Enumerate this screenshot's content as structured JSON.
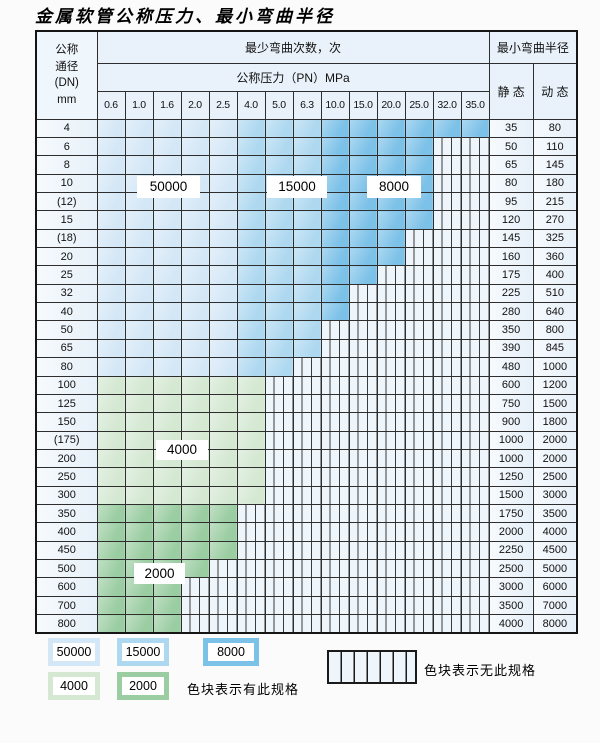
{
  "title": "金属软管公称压力、最小弯曲半径",
  "table": {
    "dn_header_lines": [
      "公称",
      "通径",
      "(DN)",
      "mm"
    ],
    "cycles_header": "最少弯曲次数，次",
    "pressure_header": "公称压力（PN）MPa",
    "radius_header": "最小弯曲半径",
    "static_label": "静 态",
    "dynamic_label": "动 态",
    "pressure_columns": [
      "0.6",
      "1.0",
      "1.6",
      "2.0",
      "2.5",
      "4.0",
      "5.0",
      "6.3",
      "10.0",
      "15.0",
      "20.0",
      "25.0",
      "32.0",
      "35.0"
    ],
    "rows": [
      {
        "dn": "4",
        "group": "blue",
        "colored_until": 13,
        "static": "35",
        "dynamic": "80"
      },
      {
        "dn": "6",
        "group": "blue",
        "colored_until": 11,
        "static": "50",
        "dynamic": "110"
      },
      {
        "dn": "8",
        "group": "blue",
        "colored_until": 11,
        "static": "65",
        "dynamic": "145"
      },
      {
        "dn": "10",
        "group": "blue",
        "colored_until": 11,
        "static": "80",
        "dynamic": "180"
      },
      {
        "dn": "(12)",
        "group": "blue",
        "colored_until": 11,
        "static": "95",
        "dynamic": "215"
      },
      {
        "dn": "15",
        "group": "blue",
        "colored_until": 11,
        "static": "120",
        "dynamic": "270"
      },
      {
        "dn": "(18)",
        "group": "blue",
        "colored_until": 10,
        "static": "145",
        "dynamic": "325"
      },
      {
        "dn": "20",
        "group": "blue",
        "colored_until": 10,
        "static": "160",
        "dynamic": "360"
      },
      {
        "dn": "25",
        "group": "blue",
        "colored_until": 9,
        "static": "175",
        "dynamic": "400"
      },
      {
        "dn": "32",
        "group": "blue",
        "colored_until": 8,
        "static": "225",
        "dynamic": "510"
      },
      {
        "dn": "40",
        "group": "blue",
        "colored_until": 8,
        "static": "280",
        "dynamic": "640"
      },
      {
        "dn": "50",
        "group": "blue",
        "colored_until": 7,
        "static": "350",
        "dynamic": "800"
      },
      {
        "dn": "65",
        "group": "blue",
        "colored_until": 7,
        "static": "390",
        "dynamic": "845"
      },
      {
        "dn": "80",
        "group": "blue",
        "colored_until": 6,
        "static": "480",
        "dynamic": "1000"
      },
      {
        "dn": "100",
        "group": "g4",
        "colored_until": 5,
        "static": "600",
        "dynamic": "1200"
      },
      {
        "dn": "125",
        "group": "g4",
        "colored_until": 5,
        "static": "750",
        "dynamic": "1500"
      },
      {
        "dn": "150",
        "group": "g4",
        "colored_until": 5,
        "static": "900",
        "dynamic": "1800"
      },
      {
        "dn": "(175)",
        "group": "g4",
        "colored_until": 5,
        "static": "1000",
        "dynamic": "2000"
      },
      {
        "dn": "200",
        "group": "g4",
        "colored_until": 5,
        "static": "1000",
        "dynamic": "2000"
      },
      {
        "dn": "250",
        "group": "g4",
        "colored_until": 5,
        "static": "1250",
        "dynamic": "2500"
      },
      {
        "dn": "300",
        "group": "g4",
        "colored_until": 5,
        "static": "1500",
        "dynamic": "3000"
      },
      {
        "dn": "350",
        "group": "g2",
        "colored_until": 4,
        "static": "1750",
        "dynamic": "3500"
      },
      {
        "dn": "400",
        "group": "g2",
        "colored_until": 4,
        "static": "2000",
        "dynamic": "4000"
      },
      {
        "dn": "450",
        "group": "g2",
        "colored_until": 4,
        "static": "2250",
        "dynamic": "4500"
      },
      {
        "dn": "500",
        "group": "g2",
        "colored_until": 3,
        "static": "2500",
        "dynamic": "5000"
      },
      {
        "dn": "600",
        "group": "g2",
        "colored_until": 2,
        "static": "3000",
        "dynamic": "6000"
      },
      {
        "dn": "700",
        "group": "g2",
        "colored_until": 2,
        "static": "3500",
        "dynamic": "7000"
      },
      {
        "dn": "800",
        "group": "g2",
        "colored_until": 2,
        "static": "4000",
        "dynamic": "8000"
      }
    ]
  },
  "zone_colors": {
    "c50000": "#d4e7f6",
    "c15000": "#aed8f0",
    "c8000": "#7cc1e8",
    "c4000": "#d4e8d2",
    "c2000": "#9bcda2",
    "stripe_bg": "#eef5fb",
    "grid": "#2e2e2e",
    "header_bg": "#e9f2fa",
    "side_bg": "#eff6fc"
  },
  "overlay_labels": [
    {
      "text": "50000"
    },
    {
      "text": "15000"
    },
    {
      "text": "8000"
    },
    {
      "text": "4000"
    },
    {
      "text": "2000"
    }
  ],
  "legend": {
    "items": [
      {
        "label": "50000"
      },
      {
        "label": "15000"
      },
      {
        "label": "8000"
      },
      {
        "label": "4000"
      },
      {
        "label": "2000"
      }
    ],
    "has_spec_note": "色块表示有此规格",
    "no_spec_note": "色块表示无此规格"
  }
}
